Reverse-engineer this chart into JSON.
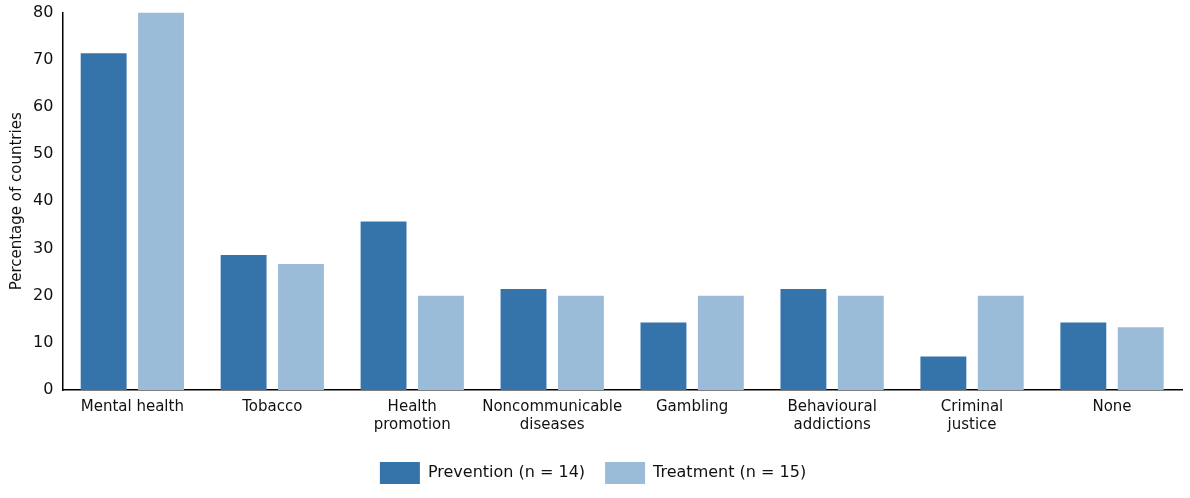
{
  "chart_data": {
    "type": "bar",
    "ylabel": "Percentage of countries",
    "categories": [
      "Mental health",
      "Tobacco",
      "Health\npromotion",
      "Noncommunicable\ndiseases",
      "Gambling",
      "Behavioural\naddictions",
      "Criminal\njustice",
      "None"
    ],
    "series": [
      {
        "name": "Prevention (n = 14)",
        "color": "#3474ab",
        "values": [
          71.4,
          28.6,
          35.7,
          21.4,
          14.3,
          21.4,
          7.1,
          14.3
        ]
      },
      {
        "name": "Treatment (n = 15)",
        "color": "#9bbcd8",
        "values": [
          80,
          26.7,
          20,
          20,
          20,
          20,
          20,
          13.3
        ]
      }
    ],
    "ylim": [
      0,
      80
    ],
    "yticks": [
      0,
      10,
      20,
      30,
      40,
      50,
      60,
      70,
      80
    ],
    "grid": false,
    "legend": "bottom"
  }
}
